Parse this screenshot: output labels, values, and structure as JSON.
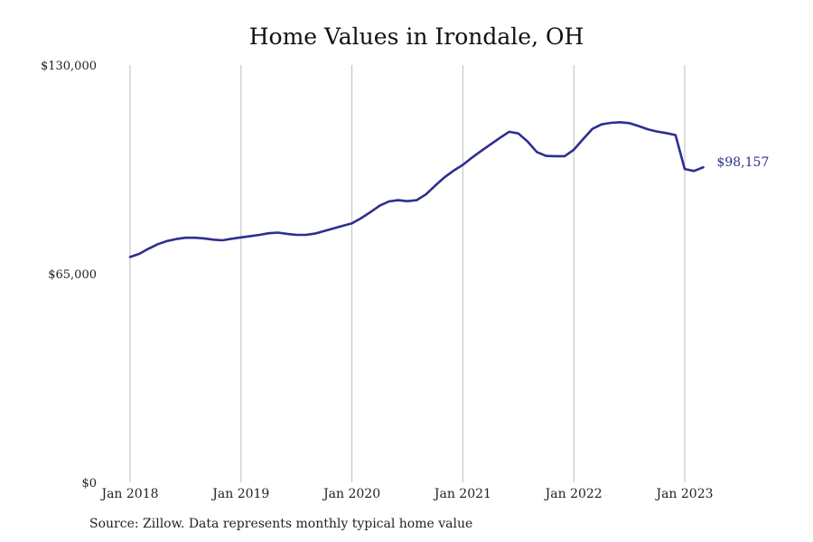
{
  "title": "Home Values in Irondale, OH",
  "source": "Source: Zillow. Data represents monthly typical home value",
  "colors": {
    "line": "#2e2e8f",
    "grid": "#bdbdbd",
    "text": "#222222",
    "end_label": "#2e2e8f"
  },
  "chart_data": {
    "type": "line",
    "title": "Home Values in Irondale, OH",
    "xlabel": "",
    "ylabel": "",
    "ylim": [
      0,
      130000
    ],
    "xlim": [
      "2018-01",
      "2023-03"
    ],
    "grid": {
      "vertical": true,
      "horizontal": false
    },
    "y_ticks": [
      {
        "value": 0,
        "label": "$0"
      },
      {
        "value": 65000,
        "label": "$65,000"
      },
      {
        "value": 130000,
        "label": "$130,000"
      }
    ],
    "x_ticks": [
      {
        "value": "2018-01",
        "label": "Jan 2018"
      },
      {
        "value": "2019-01",
        "label": "Jan 2019"
      },
      {
        "value": "2020-01",
        "label": "Jan 2020"
      },
      {
        "value": "2021-01",
        "label": "Jan 2021"
      },
      {
        "value": "2022-01",
        "label": "Jan 2022"
      },
      {
        "value": "2023-01",
        "label": "Jan 2023"
      }
    ],
    "end_label": "$98,157",
    "x": [
      "2018-01",
      "2018-02",
      "2018-03",
      "2018-04",
      "2018-05",
      "2018-06",
      "2018-07",
      "2018-08",
      "2018-09",
      "2018-10",
      "2018-11",
      "2018-12",
      "2019-01",
      "2019-02",
      "2019-03",
      "2019-04",
      "2019-05",
      "2019-06",
      "2019-07",
      "2019-08",
      "2019-09",
      "2019-10",
      "2019-11",
      "2019-12",
      "2020-01",
      "2020-02",
      "2020-03",
      "2020-04",
      "2020-05",
      "2020-06",
      "2020-07",
      "2020-08",
      "2020-09",
      "2020-10",
      "2020-11",
      "2020-12",
      "2021-01",
      "2021-02",
      "2021-03",
      "2021-04",
      "2021-05",
      "2021-06",
      "2021-07",
      "2021-08",
      "2021-09",
      "2021-10",
      "2021-11",
      "2021-12",
      "2022-01",
      "2022-02",
      "2022-03",
      "2022-04",
      "2022-05",
      "2022-06",
      "2022-07",
      "2022-08",
      "2022-09",
      "2022-10",
      "2022-11",
      "2022-12",
      "2023-01",
      "2023-02",
      "2023-03"
    ],
    "series": [
      {
        "values": [
          70200,
          71200,
          72800,
          74200,
          75200,
          75800,
          76200,
          76200,
          76000,
          75600,
          75400,
          75900,
          76300,
          76700,
          77100,
          77600,
          77800,
          77400,
          77100,
          77100,
          77500,
          78300,
          79100,
          79900,
          80700,
          82300,
          84200,
          86200,
          87500,
          87900,
          87600,
          87900,
          89700,
          92400,
          95000,
          97100,
          98900,
          101200,
          103300,
          105300,
          107300,
          109200,
          108700,
          106200,
          102900,
          101700,
          101600,
          101600,
          103600,
          106900,
          110100,
          111500,
          112000,
          112200,
          111900,
          111000,
          110000,
          109300,
          108800,
          108200,
          97400,
          96600,
          98157
        ]
      }
    ]
  }
}
